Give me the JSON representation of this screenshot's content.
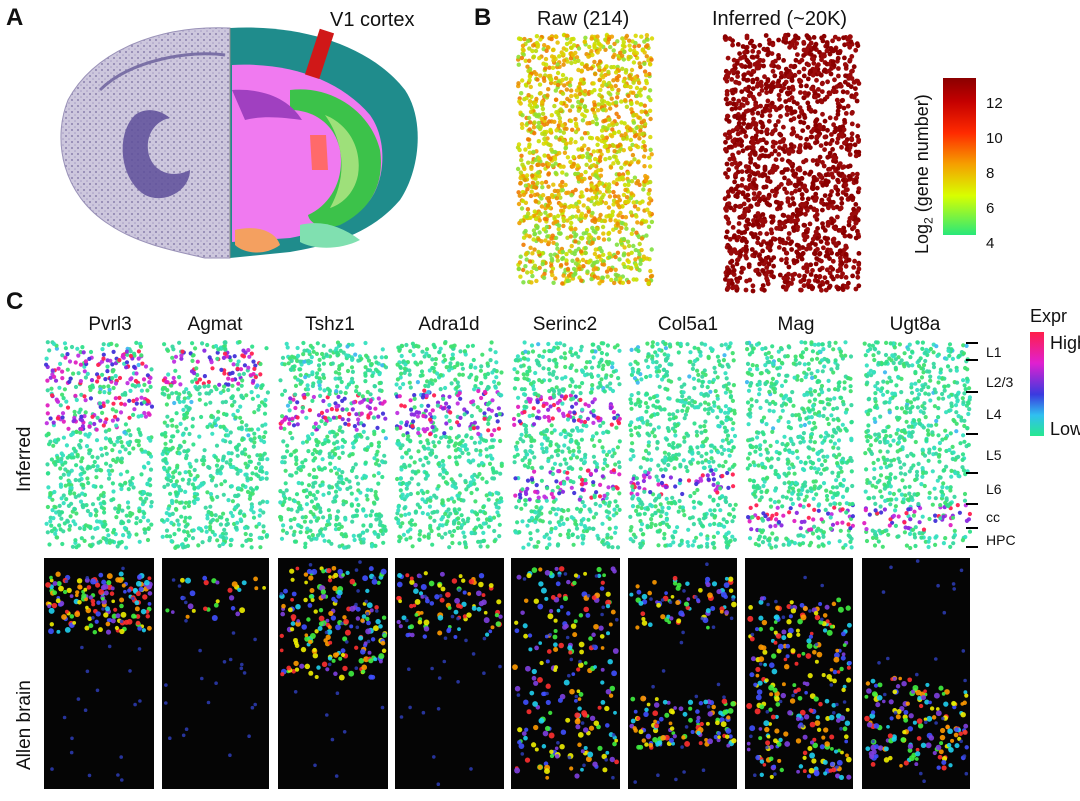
{
  "panels": {
    "a": {
      "letter": "A",
      "v1_label": "V1 cortex"
    },
    "b": {
      "letter": "B",
      "raw_title": "Raw (214)",
      "inferred_title": "Inferred (~20K)",
      "colorbar": {
        "label_main": "Log",
        "label_sub": "2",
        "label_rest": " (gene number)",
        "ticks": [
          "12",
          "10",
          "8",
          "6",
          "4"
        ],
        "colors": {
          "top": "#8b0000",
          "mid_high": "#ff2a00",
          "mid": "#f5a000",
          "mid_low": "#d8ff00",
          "bottom": "#28e87a"
        }
      }
    },
    "c": {
      "letter": "C",
      "genes": [
        "Pvrl3",
        "Agmat",
        "Tshz1",
        "Adra1d",
        "Serinc2",
        "Col5a1",
        "Mag",
        "Ugt8a"
      ],
      "row_labels": {
        "inferred": "Inferred",
        "allen": "Allen brain"
      },
      "layers": [
        "L1",
        "L2/3",
        "L4",
        "L5",
        "L6",
        "cc",
        "HPC"
      ],
      "expr_legend": {
        "title": "Expr",
        "high": "High",
        "low": "Low"
      }
    }
  }
}
